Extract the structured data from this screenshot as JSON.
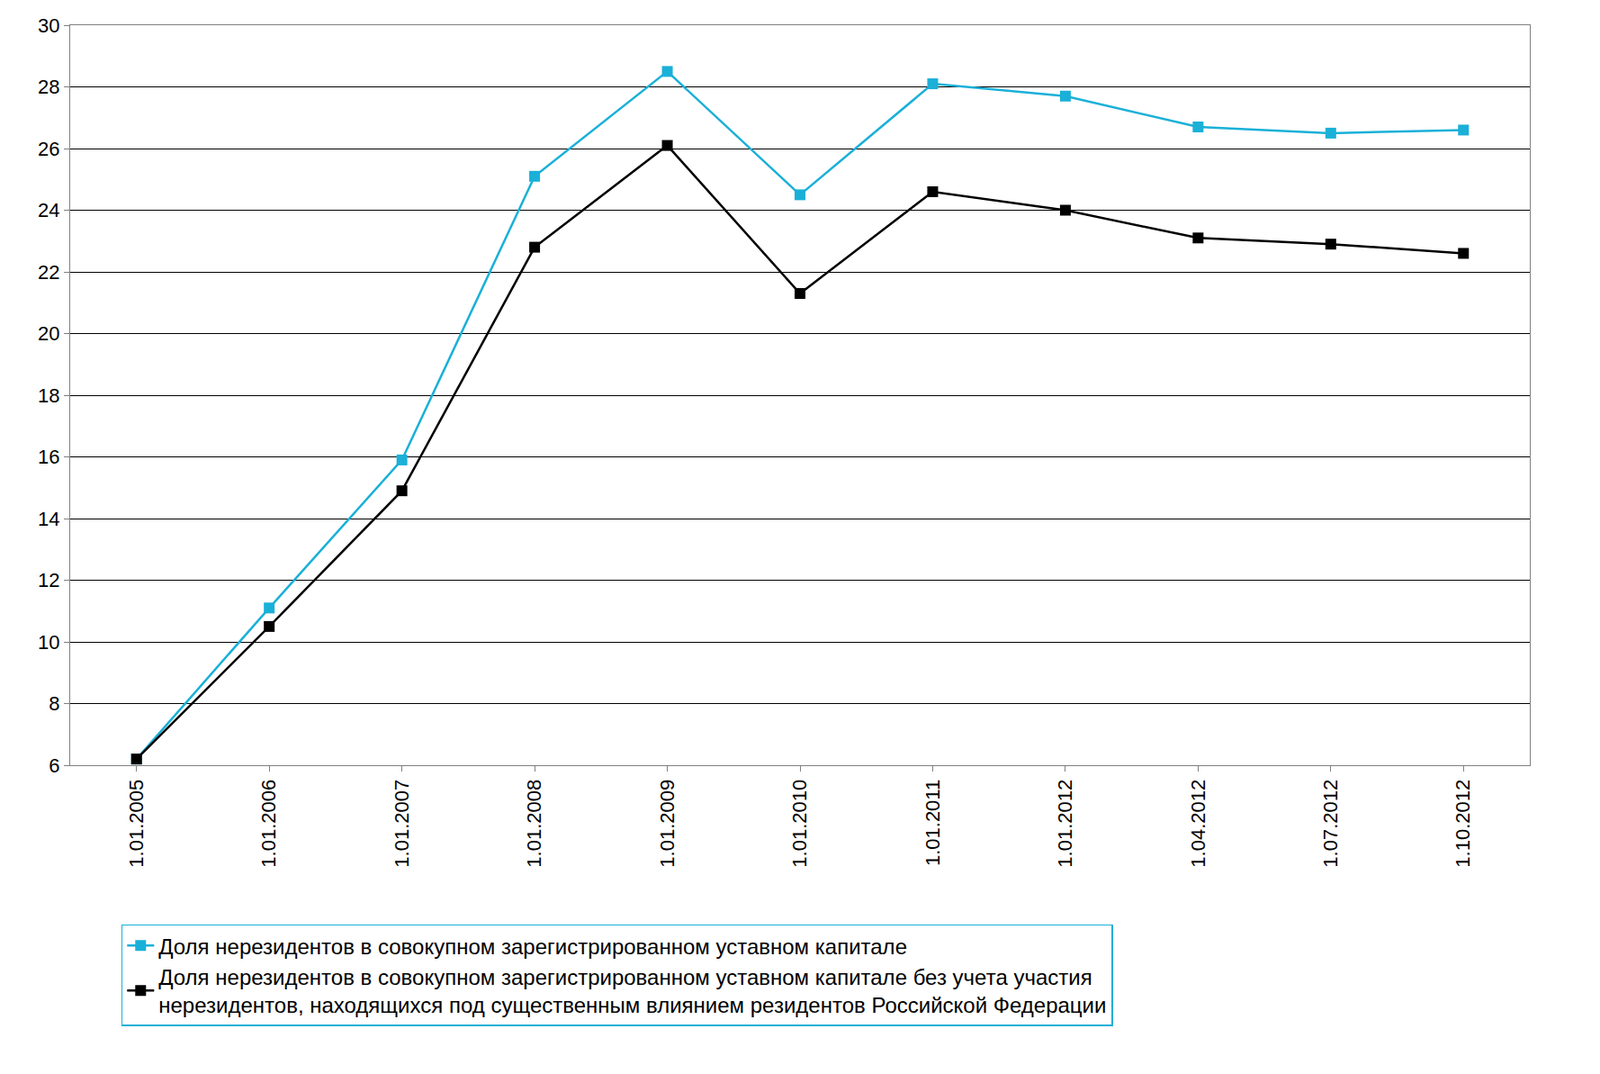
{
  "chart_data": {
    "type": "line",
    "categories": [
      "1.01.2005",
      "1.01.2006",
      "1.01.2007",
      "1.01.2008",
      "1.01.2009",
      "1.01.2010",
      "1.01.2011",
      "1.01.2012",
      "1.04.2012",
      "1.07.2012",
      "1.10.2012"
    ],
    "series": [
      {
        "name": "Доля нерезидентов в совокупном зарегистрированном уставном капитале",
        "color": "#1ab0d8",
        "marker": "square",
        "values": [
          6.2,
          11.1,
          15.9,
          25.1,
          28.5,
          24.5,
          28.1,
          27.7,
          26.7,
          26.5,
          26.6
        ]
      },
      {
        "name": "Доля нерезидентов в совокупном зарегистрированном уставном капитале без учета участия нерезидентов, находящихся под существенным влиянием резидентов Российской Федерации",
        "color": "#000000",
        "marker": "square",
        "values": [
          6.2,
          10.5,
          14.9,
          22.8,
          26.1,
          21.3,
          24.6,
          24.0,
          23.1,
          22.9,
          22.6
        ]
      }
    ],
    "ylim": [
      6,
      30
    ],
    "yticks": [
      6,
      8,
      10,
      12,
      14,
      16,
      18,
      20,
      22,
      24,
      26,
      28,
      30
    ],
    "grid": true,
    "legend": "bottom"
  }
}
